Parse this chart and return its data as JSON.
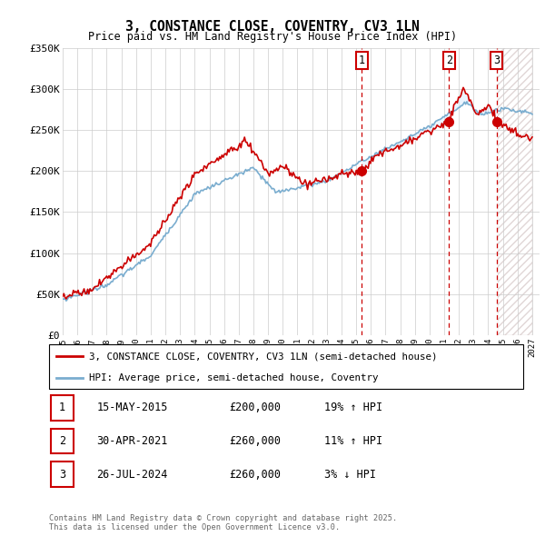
{
  "title": "3, CONSTANCE CLOSE, COVENTRY, CV3 1LN",
  "subtitle": "Price paid vs. HM Land Registry's House Price Index (HPI)",
  "legend_line1": "3, CONSTANCE CLOSE, COVENTRY, CV3 1LN (semi-detached house)",
  "legend_line2": "HPI: Average price, semi-detached house, Coventry",
  "sales": [
    {
      "num": 1,
      "date": "15-MAY-2015",
      "price": 200000,
      "pct": "19%",
      "dir": "↑",
      "year": 2015.37
    },
    {
      "num": 2,
      "date": "30-APR-2021",
      "price": 260000,
      "pct": "11%",
      "dir": "↑",
      "year": 2021.33
    },
    {
      "num": 3,
      "date": "26-JUL-2024",
      "price": 260000,
      "pct": "3%",
      "dir": "↓",
      "year": 2024.57
    }
  ],
  "footnote": "Contains HM Land Registry data © Crown copyright and database right 2025.\nThis data is licensed under the Open Government Licence v3.0.",
  "red_color": "#cc0000",
  "blue_color": "#7aadcf",
  "grid_color": "#cccccc",
  "ylim": [
    0,
    350000
  ],
  "xlim_start": 1995.0,
  "xlim_end": 2027.5,
  "future_start": 2024.6,
  "hpi_seed": 10,
  "prop_seed": 20
}
